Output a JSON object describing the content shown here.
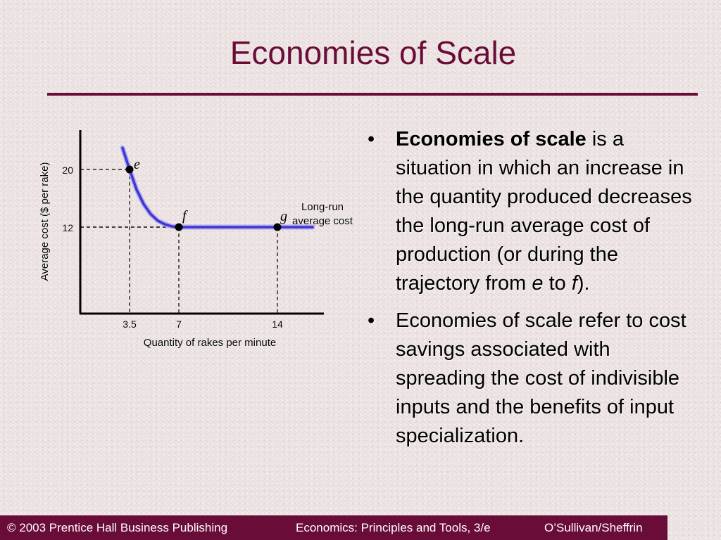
{
  "slide": {
    "title": "Economies of Scale"
  },
  "chart_data": {
    "type": "line",
    "title": "",
    "xlabel": "Quantity of rakes per minute",
    "ylabel": "Average cost ($ per rake)",
    "x_ticks": [
      "3.5",
      "7",
      "14"
    ],
    "y_ticks": [
      "20",
      "12"
    ],
    "xlim": [
      0,
      20
    ],
    "ylim": [
      0,
      24
    ],
    "series": [
      {
        "name": "Long-run average cost",
        "color": "#3a3acf",
        "x": [
          3.0,
          3.5,
          4.0,
          4.5,
          5.0,
          5.5,
          6.0,
          6.5,
          7.0,
          10.0,
          14.0,
          16.5
        ],
        "y": [
          23.0,
          20.0,
          17.2,
          15.2,
          13.8,
          12.9,
          12.4,
          12.1,
          12.0,
          12.0,
          12.0,
          12.0
        ]
      }
    ],
    "points": [
      {
        "label": "e",
        "x": 3.5,
        "y": 20
      },
      {
        "label": "f",
        "x": 7,
        "y": 12
      },
      {
        "label": "g",
        "x": 14,
        "y": 12
      }
    ],
    "curve_label_lines": [
      "Long-run",
      "average cost"
    ],
    "grid": false
  },
  "bullets": {
    "b1": {
      "bullet": "•",
      "bold": "Economies of scale",
      "text_a": " is a situation in which an increase in the quantity produced decreases the long-run average cost of production (or during the trajectory from ",
      "em1": "e",
      "text_b": " to ",
      "em2": "f",
      "text_c": ")."
    },
    "b2": {
      "bullet": "•",
      "text": "Economies of scale refer to cost savings associated with spreading the cost of indivisible inputs and the benefits of input specialization."
    }
  },
  "footer": {
    "copyright": "© 2003 Prentice Hall Business Publishing",
    "book": "Economics: Principles and Tools, 3/e",
    "authors": "O’Sullivan/Sheffrin"
  }
}
